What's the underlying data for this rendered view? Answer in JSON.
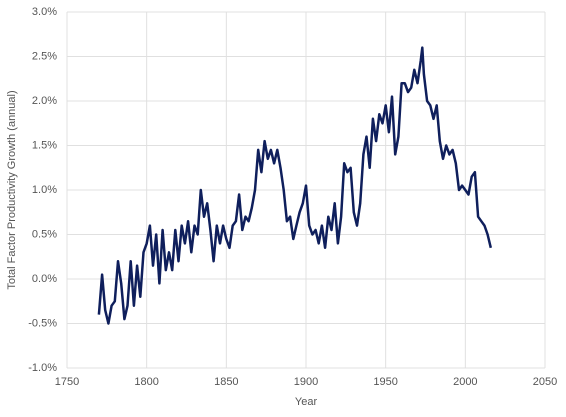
{
  "chart_data": {
    "type": "line",
    "x_label": "Year",
    "y_label": "Total Factor Productivity Growth (annual)",
    "x": [
      1770,
      1772,
      1774,
      1776,
      1778,
      1780,
      1782,
      1784,
      1786,
      1788,
      1790,
      1792,
      1794,
      1796,
      1798,
      1800,
      1802,
      1804,
      1806,
      1808,
      1810,
      1812,
      1814,
      1816,
      1818,
      1820,
      1822,
      1824,
      1826,
      1828,
      1830,
      1832,
      1834,
      1836,
      1838,
      1840,
      1842,
      1844,
      1846,
      1848,
      1850,
      1852,
      1854,
      1856,
      1858,
      1860,
      1862,
      1864,
      1866,
      1868,
      1870,
      1872,
      1874,
      1876,
      1878,
      1880,
      1882,
      1884,
      1886,
      1888,
      1890,
      1892,
      1894,
      1896,
      1898,
      1900,
      1902,
      1904,
      1906,
      1908,
      1910,
      1912,
      1914,
      1916,
      1918,
      1920,
      1922,
      1924,
      1926,
      1928,
      1930,
      1932,
      1934,
      1936,
      1938,
      1940,
      1942,
      1944,
      1946,
      1948,
      1950,
      1952,
      1954,
      1956,
      1958,
      1960,
      1962,
      1964,
      1966,
      1968,
      1970,
      1972,
      1973,
      1974,
      1976,
      1978,
      1980,
      1982,
      1984,
      1986,
      1988,
      1990,
      1992,
      1994,
      1996,
      1998,
      2000,
      2002,
      2004,
      2006,
      2008,
      2010,
      2012,
      2014,
      2016
    ],
    "series": [
      {
        "name": "TFP growth",
        "color": "#0f1f5c",
        "values": [
          -0.4,
          0.05,
          -0.35,
          -0.5,
          -0.3,
          -0.25,
          0.2,
          -0.05,
          -0.45,
          -0.3,
          0.2,
          -0.3,
          0.15,
          -0.2,
          0.3,
          0.4,
          0.6,
          0.15,
          0.5,
          -0.05,
          0.55,
          0.1,
          0.3,
          0.1,
          0.55,
          0.2,
          0.6,
          0.4,
          0.65,
          0.3,
          0.6,
          0.5,
          1.0,
          0.7,
          0.85,
          0.55,
          0.2,
          0.6,
          0.4,
          0.6,
          0.45,
          0.35,
          0.6,
          0.65,
          0.95,
          0.55,
          0.7,
          0.65,
          0.8,
          1.0,
          1.45,
          1.2,
          1.55,
          1.35,
          1.45,
          1.3,
          1.45,
          1.25,
          1.0,
          0.65,
          0.7,
          0.45,
          0.6,
          0.75,
          0.85,
          1.05,
          0.6,
          0.5,
          0.55,
          0.4,
          0.6,
          0.35,
          0.7,
          0.55,
          0.85,
          0.4,
          0.7,
          1.3,
          1.2,
          1.25,
          0.75,
          0.6,
          0.85,
          1.4,
          1.6,
          1.25,
          1.8,
          1.55,
          1.85,
          1.75,
          1.95,
          1.65,
          2.05,
          1.4,
          1.6,
          2.2,
          2.2,
          2.1,
          2.15,
          2.35,
          2.2,
          2.45,
          2.6,
          2.3,
          2.0,
          1.95,
          1.8,
          1.95,
          1.55,
          1.35,
          1.5,
          1.4,
          1.45,
          1.3,
          1.0,
          1.05,
          1.0,
          0.95,
          1.15,
          1.2,
          0.7,
          0.65,
          0.6,
          0.5,
          0.35
        ]
      }
    ],
    "xlim": [
      1750,
      2050
    ],
    "xticks": [
      1750,
      1800,
      1850,
      1900,
      1950,
      2000,
      2050
    ],
    "ylim": [
      -1,
      3
    ],
    "yticks": [
      {
        "value": -1,
        "label": "-1.0%"
      },
      {
        "value": -0.5,
        "label": "-0.5%"
      },
      {
        "value": 0,
        "label": "0.0%"
      },
      {
        "value": 0.5,
        "label": "0.5%"
      },
      {
        "value": 1,
        "label": "1.0%"
      },
      {
        "value": 1.5,
        "label": "1.5%"
      },
      {
        "value": 2,
        "label": "2.0%"
      },
      {
        "value": 2.5,
        "label": "2.5%"
      },
      {
        "value": 3,
        "label": "3.0%"
      }
    ],
    "grid": true
  }
}
